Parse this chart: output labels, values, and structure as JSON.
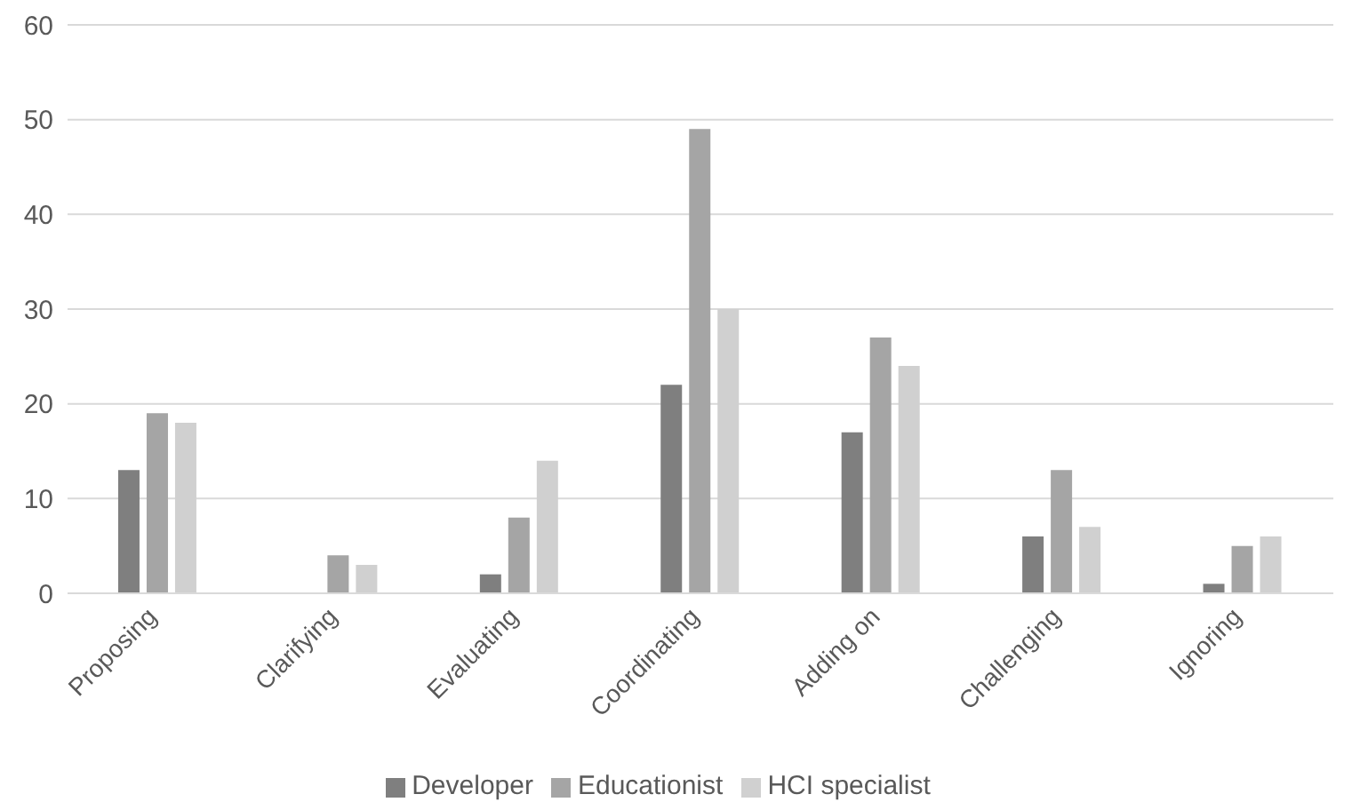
{
  "chart_data": {
    "type": "bar",
    "categories": [
      "Proposing",
      "Clarifying",
      "Evaluating",
      "Coordinating",
      "Adding on",
      "Challenging",
      "Ignoring"
    ],
    "series": [
      {
        "name": "Developer",
        "color": "#7f7f7f",
        "values": [
          13,
          0,
          2,
          22,
          17,
          6,
          1
        ]
      },
      {
        "name": "Educationist",
        "color": "#a5a5a5",
        "values": [
          19,
          4,
          8,
          49,
          27,
          13,
          5
        ]
      },
      {
        "name": "HCI specialist",
        "color": "#d0d0d0",
        "values": [
          18,
          3,
          14,
          30,
          24,
          7,
          6
        ]
      }
    ],
    "ylim": [
      0,
      60
    ],
    "yticks": [
      0,
      10,
      20,
      30,
      40,
      50,
      60
    ],
    "grid": "y",
    "legend": "bottom"
  }
}
